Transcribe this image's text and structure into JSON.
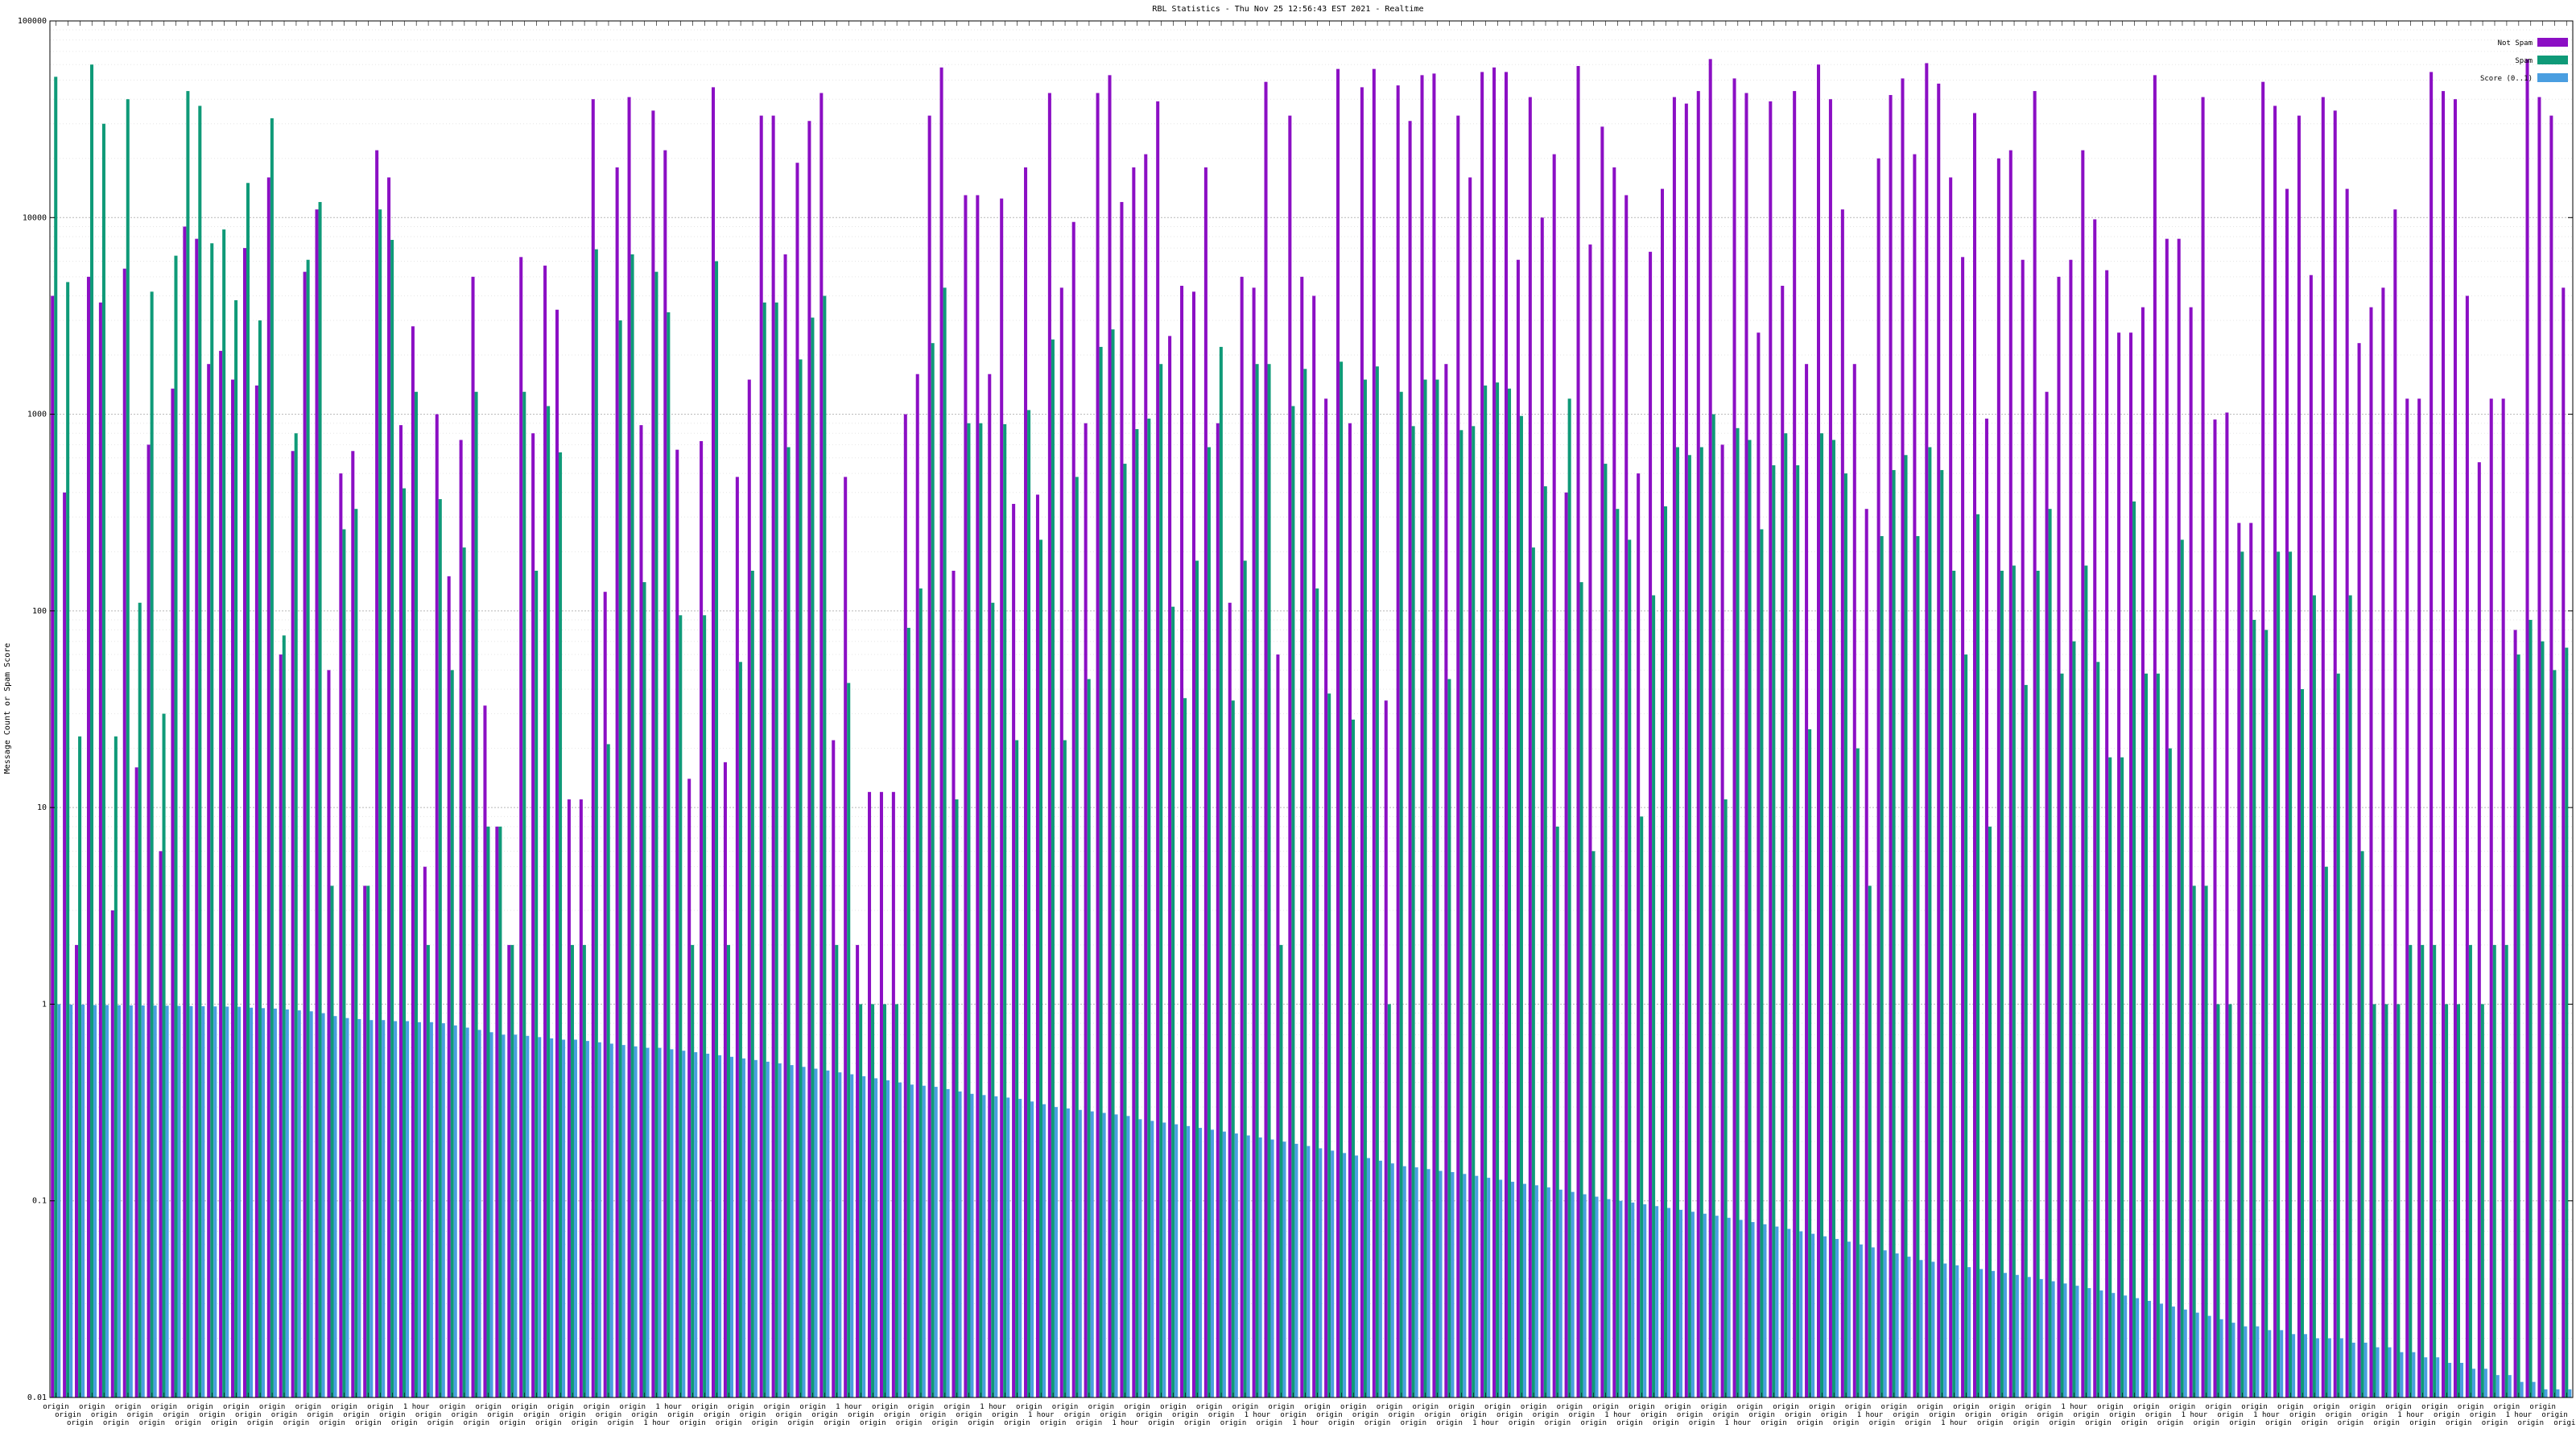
{
  "chart_data": {
    "type": "bar",
    "title": "RBL Statistics - Thu Nov 25 12:56:43 EST 2021 - Realtime",
    "ylabel": "Message Count or Spam Score",
    "yscale": "log",
    "ylim": [
      0.01,
      100000
    ],
    "ytick_labels": [
      "100000",
      "10000",
      "1000",
      "100",
      "10",
      "1",
      "0.1",
      "0.01"
    ],
    "ytick_values": [
      100000,
      10000,
      1000,
      100,
      10,
      1,
      0.1,
      0.01
    ],
    "legend_position": "top-right",
    "colors": {
      "not_spam": "#8b0fc4",
      "spam": "#0f9a78",
      "score": "#4a9ee0"
    },
    "series_names": [
      "Not Spam",
      "Spam",
      "Score (0..1)"
    ],
    "categories": [
      "origin",
      "origin",
      "origin",
      "origin",
      "origin",
      "origin",
      "origin",
      "origin",
      "origin",
      "origin",
      "origin",
      "origin",
      "origin",
      "origin",
      "origin",
      "origin",
      "origin",
      "origin",
      "origin",
      "origin",
      "origin",
      "origin",
      "origin",
      "origin",
      "origin",
      "origin",
      "origin",
      "origin",
      "origin",
      "origin",
      "1 hour",
      "origin",
      "origin",
      "origin",
      "origin",
      "origin",
      "origin",
      "origin",
      "origin",
      "origin",
      "origin",
      "origin",
      "origin",
      "origin",
      "origin",
      "origin",
      "origin",
      "origin",
      "origin",
      "origin",
      "1 hour",
      "1 hour",
      "origin",
      "origin",
      "origin",
      "origin",
      "origin",
      "origin",
      "origin",
      "origin",
      "origin",
      "origin",
      "origin",
      "origin",
      "origin",
      "origin",
      "1 hour",
      "origin",
      "origin",
      "origin",
      "origin",
      "origin",
      "origin",
      "origin",
      "origin",
      "origin",
      "origin",
      "origin",
      "1 hour",
      "origin",
      "origin",
      "origin",
      "1 hour",
      "origin",
      "origin",
      "origin",
      "origin",
      "origin",
      "origin",
      "1 hour",
      "origin",
      "origin",
      "origin",
      "origin",
      "origin",
      "origin",
      "origin",
      "origin",
      "origin",
      "origin",
      "1 hour",
      "origin",
      "origin",
      "origin",
      "1 hour",
      "origin",
      "origin",
      "origin",
      "origin",
      "origin",
      "origin",
      "origin",
      "origin",
      "origin",
      "origin",
      "origin",
      "origin",
      "origin",
      "origin",
      "1 hour",
      "origin",
      "origin",
      "origin",
      "origin",
      "origin",
      "origin",
      "origin",
      "origin",
      "origin",
      "origin",
      "1 hour",
      "origin",
      "origin",
      "origin",
      "origin",
      "origin",
      "origin",
      "origin",
      "origin",
      "origin",
      "1 hour",
      "origin",
      "origin",
      "origin",
      "origin",
      "origin",
      "origin",
      "origin",
      "origin",
      "origin",
      "origin",
      "1 hour",
      "origin",
      "origin",
      "origin",
      "origin",
      "origin",
      "origin",
      "1 hour",
      "origin",
      "origin",
      "origin",
      "origin",
      "origin",
      "origin",
      "origin",
      "origin",
      "origin",
      "1 hour",
      "origin",
      "origin",
      "origin",
      "origin",
      "origin",
      "origin",
      "origin",
      "origin",
      "origin",
      "1 hour",
      "origin",
      "origin",
      "origin",
      "origin",
      "origin",
      "1 hour",
      "origin",
      "origin",
      "origin",
      "origin",
      "origin",
      "origin",
      "origin",
      "origin",
      "origin",
      "origin",
      "origin",
      "1 hour",
      "origin",
      "origin",
      "origin",
      "origin",
      "origin",
      "origin",
      "origin",
      "origin",
      "1 hour",
      "origin",
      "origin",
      "origin",
      "origin"
    ],
    "series": [
      {
        "name": "Not Spam",
        "values": [
          4000,
          400,
          2,
          5000,
          3700,
          3,
          5500,
          16,
          700,
          6,
          1350,
          9000,
          7800,
          1800,
          2100,
          1500,
          7000,
          1400,
          16000,
          60,
          650,
          5300,
          11000,
          50,
          500,
          650,
          4,
          22000,
          16000,
          880,
          2800,
          5,
          1000,
          150,
          740,
          5000,
          33,
          8,
          2,
          6300,
          800,
          5700,
          3400,
          11,
          11,
          40000,
          125,
          18000,
          41000,
          880,
          35000,
          22000,
          660,
          14,
          730,
          46000,
          17,
          480,
          1500,
          33000,
          33000,
          6500,
          19000,
          31000,
          43000,
          22,
          480,
          2,
          12,
          12,
          12,
          1000,
          1600,
          33000,
          58000,
          160,
          13000,
          13000,
          1600,
          12500,
          350,
          18000,
          390,
          43000,
          4400,
          9500,
          900,
          43000,
          53000,
          12000,
          18000,
          21000,
          39000,
          2500,
          4500,
          4200,
          18000,
          900,
          110,
          5000,
          4400,
          49000,
          60,
          33000,
          5000,
          4000,
          1200,
          57000,
          900,
          46000,
          57000,
          35,
          47000,
          31000,
          53000,
          54000,
          1800,
          33000,
          16000,
          55000,
          58000,
          55000,
          6100,
          41000,
          10000,
          21000,
          400,
          59000,
          7300,
          29000,
          18000,
          13000,
          500,
          6700,
          14000,
          41000,
          38000,
          44000,
          64000,
          700,
          51000,
          43000,
          2600,
          39000,
          4500,
          44000,
          1800,
          60000,
          40000,
          11000,
          1800,
          330,
          20000,
          42000,
          51000,
          21000,
          61000,
          48000,
          16000,
          6300,
          34000,
          950,
          20000,
          22000,
          6100,
          44000,
          1300,
          5000,
          6100,
          22000,
          9800,
          5400,
          2600,
          2600,
          3500,
          53000,
          7800,
          7800,
          3500,
          41000,
          940,
          1020,
          280,
          280,
          49000,
          37000,
          14000,
          33000,
          5100,
          41000,
          35000,
          14000,
          2300,
          3500,
          4400,
          11000,
          1200,
          1200,
          55000,
          44000,
          40000,
          4000,
          570,
          1200,
          1200,
          80,
          64000,
          41000,
          33000,
          4400
        ]
      },
      {
        "name": "Spam",
        "values": [
          52000,
          4700,
          23,
          60000,
          30000,
          23,
          40000,
          110,
          4200,
          30,
          6400,
          44000,
          37000,
          7400,
          8700,
          3800,
          15000,
          3000,
          32000,
          75,
          800,
          6100,
          12000,
          4,
          260,
          330,
          4,
          11000,
          7700,
          420,
          1300,
          2,
          370,
          50,
          210,
          1300,
          8,
          8,
          2,
          1300,
          160,
          1100,
          640,
          2,
          2,
          6900,
          21,
          3000,
          6500,
          140,
          5300,
          3300,
          95,
          2,
          95,
          6000,
          2,
          55,
          160,
          3700,
          3700,
          680,
          1900,
          3100,
          4000,
          2,
          43,
          1,
          1,
          1,
          1,
          82,
          130,
          2300,
          4400,
          11,
          900,
          900,
          110,
          890,
          22,
          1050,
          230,
          2400,
          22,
          480,
          45,
          2200,
          2700,
          560,
          840,
          950,
          1800,
          105,
          36,
          180,
          680,
          2200,
          35,
          180,
          1800,
          1800,
          2,
          1100,
          1700,
          130,
          38,
          1850,
          28,
          1500,
          1750,
          1,
          1300,
          870,
          1500,
          1500,
          45,
          830,
          870,
          1400,
          1450,
          1350,
          980,
          210,
          430,
          8,
          1200,
          140,
          6,
          560,
          330,
          230,
          9,
          120,
          340,
          680,
          620,
          680,
          1000,
          11,
          850,
          740,
          260,
          550,
          800,
          550,
          25,
          800,
          740,
          500,
          20,
          4,
          240,
          520,
          620,
          240,
          680,
          520,
          160,
          60,
          310,
          8,
          160,
          170,
          42,
          160,
          330,
          48,
          70,
          170,
          55,
          18,
          18,
          360,
          48,
          48,
          20,
          230,
          4,
          4,
          1,
          1,
          200,
          90,
          80,
          200,
          200,
          40,
          120,
          5,
          48,
          120,
          6,
          1,
          1,
          1,
          2,
          2,
          2,
          1,
          1,
          2,
          1,
          2,
          2,
          60,
          90,
          70,
          50,
          65
        ]
      },
      {
        "name": "Score (0..1)",
        "values": [
          1,
          0.995,
          0.995,
          0.99,
          0.99,
          0.988,
          0.986,
          0.985,
          0.984,
          0.982,
          0.98,
          0.978,
          0.976,
          0.974,
          0.972,
          0.97,
          0.96,
          0.955,
          0.95,
          0.94,
          0.93,
          0.92,
          0.9,
          0.87,
          0.85,
          0.84,
          0.83,
          0.83,
          0.82,
          0.82,
          0.81,
          0.81,
          0.8,
          0.78,
          0.76,
          0.74,
          0.72,
          0.7,
          0.7,
          0.69,
          0.68,
          0.67,
          0.66,
          0.66,
          0.65,
          0.64,
          0.63,
          0.62,
          0.61,
          0.6,
          0.6,
          0.59,
          0.58,
          0.57,
          0.56,
          0.55,
          0.54,
          0.53,
          0.52,
          0.51,
          0.5,
          0.49,
          0.48,
          0.47,
          0.46,
          0.45,
          0.44,
          0.43,
          0.42,
          0.41,
          0.4,
          0.39,
          0.385,
          0.38,
          0.37,
          0.36,
          0.35,
          0.345,
          0.34,
          0.335,
          0.33,
          0.32,
          0.31,
          0.3,
          0.295,
          0.29,
          0.285,
          0.28,
          0.275,
          0.27,
          0.26,
          0.255,
          0.25,
          0.245,
          0.24,
          0.235,
          0.23,
          0.225,
          0.22,
          0.215,
          0.21,
          0.205,
          0.2,
          0.195,
          0.19,
          0.185,
          0.18,
          0.175,
          0.17,
          0.165,
          0.16,
          0.155,
          0.15,
          0.148,
          0.145,
          0.142,
          0.14,
          0.137,
          0.134,
          0.131,
          0.128,
          0.125,
          0.122,
          0.12,
          0.117,
          0.114,
          0.111,
          0.108,
          0.105,
          0.102,
          0.1,
          0.098,
          0.096,
          0.094,
          0.092,
          0.09,
          0.088,
          0.086,
          0.084,
          0.082,
          0.08,
          0.078,
          0.076,
          0.074,
          0.072,
          0.07,
          0.068,
          0.066,
          0.064,
          0.062,
          0.06,
          0.058,
          0.056,
          0.054,
          0.052,
          0.05,
          0.049,
          0.048,
          0.047,
          0.046,
          0.045,
          0.044,
          0.043,
          0.042,
          0.041,
          0.04,
          0.039,
          0.038,
          0.037,
          0.036,
          0.035,
          0.034,
          0.033,
          0.032,
          0.031,
          0.03,
          0.029,
          0.028,
          0.027,
          0.026,
          0.025,
          0.024,
          0.023,
          0.023,
          0.022,
          0.022,
          0.021,
          0.021,
          0.02,
          0.02,
          0.02,
          0.019,
          0.019,
          0.018,
          0.018,
          0.017,
          0.017,
          0.016,
          0.016,
          0.015,
          0.015,
          0.014,
          0.014,
          0.013,
          0.013,
          0.012,
          0.012,
          0.011,
          0.011,
          0.011
        ]
      }
    ]
  }
}
